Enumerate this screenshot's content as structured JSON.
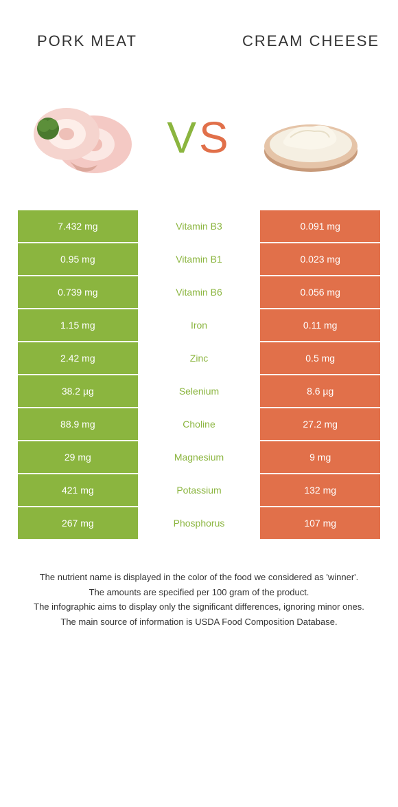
{
  "header": {
    "left_title": "Pork meat",
    "right_title": "Cream Cheese",
    "vs_v": "V",
    "vs_s": "S"
  },
  "colors": {
    "left": "#8bb53f",
    "right": "#e1704a",
    "mid_bg": "#ffffff",
    "text_white": "#ffffff"
  },
  "rows": [
    {
      "left": "7.432 mg",
      "mid": "Vitamin B3",
      "right": "0.091 mg",
      "winner": "left"
    },
    {
      "left": "0.95 mg",
      "mid": "Vitamin B1",
      "right": "0.023 mg",
      "winner": "left"
    },
    {
      "left": "0.739 mg",
      "mid": "Vitamin B6",
      "right": "0.056 mg",
      "winner": "left"
    },
    {
      "left": "1.15 mg",
      "mid": "Iron",
      "right": "0.11 mg",
      "winner": "left"
    },
    {
      "left": "2.42 mg",
      "mid": "Zinc",
      "right": "0.5 mg",
      "winner": "left"
    },
    {
      "left": "38.2 µg",
      "mid": "Selenium",
      "right": "8.6 µg",
      "winner": "left"
    },
    {
      "left": "88.9 mg",
      "mid": "Choline",
      "right": "27.2 mg",
      "winner": "left"
    },
    {
      "left": "29 mg",
      "mid": "Magnesium",
      "right": "9 mg",
      "winner": "left"
    },
    {
      "left": "421 mg",
      "mid": "Potassium",
      "right": "132 mg",
      "winner": "left"
    },
    {
      "left": "267 mg",
      "mid": "Phosphorus",
      "right": "107 mg",
      "winner": "left"
    }
  ],
  "footer": {
    "l1": "The nutrient name is displayed in the color of the food we considered as 'winner'.",
    "l2": "The amounts are specified per 100 gram of the product.",
    "l3": "The infographic aims to display only the significant differences, ignoring minor ones.",
    "l4": "The main source of information is USDA Food Composition Database."
  }
}
